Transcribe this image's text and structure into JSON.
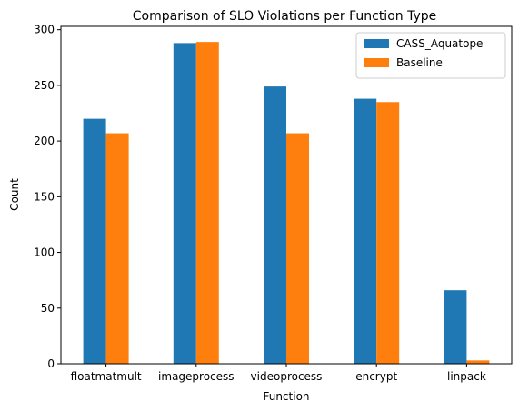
{
  "chart_data": {
    "type": "bar",
    "title": "Comparison of SLO Violations per Function Type",
    "xlabel": "Function",
    "ylabel": "Count",
    "categories": [
      "floatmatmult",
      "imageprocess",
      "videoprocess",
      "encrypt",
      "linpack"
    ],
    "series": [
      {
        "name": "CASS_Aquatope",
        "color": "#1f77b4",
        "values": [
          220,
          288,
          249,
          238,
          66
        ]
      },
      {
        "name": "Baseline",
        "color": "#ff7f0e",
        "values": [
          207,
          289,
          207,
          235,
          3
        ]
      }
    ],
    "ylim": [
      0,
      303
    ],
    "yticks": [
      0,
      50,
      100,
      150,
      200,
      250,
      300
    ],
    "grid": false,
    "legend": "top-right"
  }
}
